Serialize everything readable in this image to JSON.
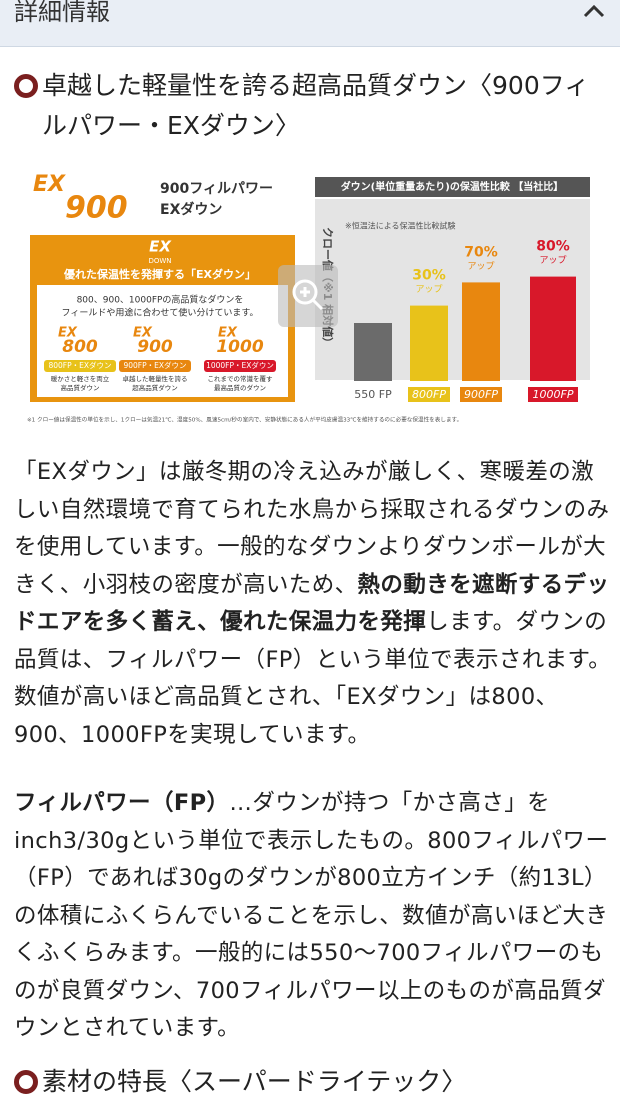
{
  "header": {
    "title": "詳細情報"
  },
  "section": {
    "heading": "卓越した軽量性を誇る超高品質ダウン〈900フィルパワー・EXダウン〉",
    "infographic": {
      "logo": {
        "brand": "EX",
        "number": "900"
      },
      "name_lines": [
        "900フィルパワー",
        "EXダウン"
      ],
      "box_logo": {
        "brand": "EX",
        "sub": "DOWN"
      },
      "box_title": "優れた保温性を発揮する「EXダウン」",
      "box_text": [
        "800、900、1000FPの高品質なダウンを",
        "フィールドや用途に合わせて使い分けています。"
      ],
      "grades": [
        {
          "brand": "EX",
          "number": "800",
          "tag": "800FP・EXダウン",
          "desc": [
            "暖かさと軽さを両立",
            "高品質ダウン"
          ]
        },
        {
          "brand": "EX",
          "number": "900",
          "tag": "900FP・EXダウン",
          "desc": [
            "卓越した軽量性を誇る",
            "超高品質ダウン"
          ]
        },
        {
          "brand": "EX",
          "number": "1000",
          "tag": "1000FP・EXダウン",
          "desc": [
            "これまでの常識を覆す",
            "最高品質のダウン"
          ]
        }
      ],
      "chart": {
        "type": "bar",
        "title": "ダウン(単位重量あたり)の保温性比較 【当社比】",
        "note": "※恒温法による保温性比較試験",
        "y_label": "クロー値（※1 相対値）",
        "categories": [
          "550 FP",
          "800FP",
          "900FP",
          "1000FP"
        ],
        "values": [
          100,
          130,
          170,
          180
        ],
        "colors": [
          "#6b6b6b",
          "#e8c21a",
          "#e8870f",
          "#d8182a"
        ],
        "annotations": [
          null,
          {
            "value": "30%",
            "text": "アップ"
          },
          {
            "value": "70%",
            "text": "アップ"
          },
          {
            "value": "80%",
            "text": "アップ"
          }
        ]
      },
      "footnote": "※1 クロー値は保温性の単位を示し、1クローは気温21℃、湿度50%、風速5cm/秒の室内で、安静状態にある人が平均皮膚温33℃を維持するのに必要な保温性を表します。"
    },
    "paragraphs": [
      [
        {
          "text": "「EXダウン」は厳冬期の冷え込みが厳しく、寒暖差の激しい自然環境で育てられた水鳥から採取されるダウンのみを使用しています。一般的なダウンよりダウンボールが大きく、小羽枝の密度が高いため、",
          "bold": false
        },
        {
          "text": "熱の動きを遮断するデッドエアを多く蓄え、優れた保温力を発揮",
          "bold": true
        },
        {
          "text": "します。ダウンの品質は、フィルパワー（FP）という単位で表示されます。数値が高いほど高品質とされ、「EXダウン」は800、900、1000FPを実現しています。",
          "bold": false
        }
      ],
      [
        {
          "text": "フィルパワー（FP）",
          "bold": true
        },
        {
          "text": "…ダウンが持つ「かさ高さ」をinch3/30gという単位で表示したもの。800フィルパワー（FP）であれば30gのダウンが800立方インチ（約13L）の体積にふくらんでいることを示し、数値が高いほど大きくふくらみます。一般的には550〜700フィルパワーのものが良質ダウン、700フィルパワー以上のものが高品質ダウンとされています。",
          "bold": false
        }
      ]
    ]
  },
  "next_section": {
    "heading": "素材の特長〈スーパードライテック〉"
  }
}
